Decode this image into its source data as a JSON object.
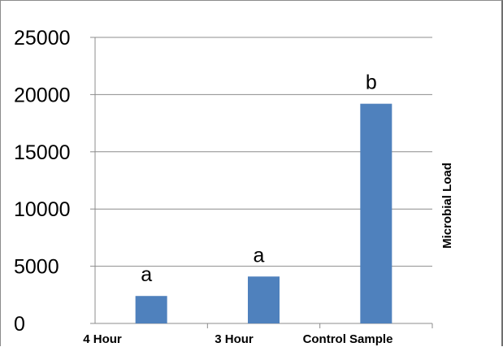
{
  "chart_data": {
    "type": "bar",
    "categories": [
      "4 Hour",
      "3 Hour",
      "Control Sample"
    ],
    "values": [
      2400,
      4100,
      19200
    ],
    "annotations": [
      "a",
      "a",
      "b"
    ],
    "title": "",
    "xlabel": "",
    "ylabel": "Microbial Load",
    "ylim": [
      0,
      25000
    ],
    "yticks": [
      "0",
      "5000",
      "10000",
      "15000",
      "20000",
      "25000"
    ],
    "grid": true,
    "legend": "none",
    "bar_color": "#4f81bd",
    "grid_color": "#8c8c8c",
    "axis_color": "#8c8c8c"
  }
}
